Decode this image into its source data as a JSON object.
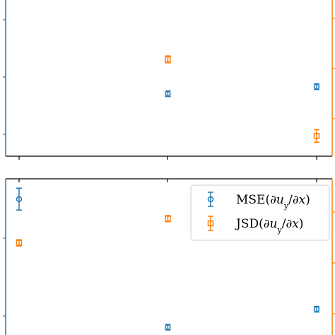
{
  "colors": {
    "mse": "#1f77b4",
    "jsd": "#ff7f0e",
    "axis": "#000000",
    "legend_border": "#cccccc"
  },
  "chart_data": [
    {
      "type": "scatter",
      "panel": "top",
      "x": [
        0,
        1,
        2
      ],
      "xlim": [
        -0.05,
        2.05
      ],
      "grid": false,
      "series": [
        {
          "key": "mse",
          "marker": "circle",
          "axis": "left",
          "ylim": [
            0,
            1
          ],
          "points": [
            {
              "x": 1,
              "y": 0.4,
              "err": 0.018
            },
            {
              "x": 2,
              "y": 0.445,
              "err": 0.018
            }
          ]
        },
        {
          "key": "jsd",
          "marker": "square",
          "axis": "right",
          "ylim": [
            0,
            1
          ],
          "points": [
            {
              "x": 1,
              "y": 0.62,
              "err": 0.022
            },
            {
              "x": 2,
              "y": 0.13,
              "err": 0.04
            }
          ]
        }
      ]
    },
    {
      "type": "scatter",
      "panel": "bottom",
      "x": [
        0,
        1,
        2
      ],
      "xlim": [
        -0.05,
        2.05
      ],
      "grid": false,
      "legend_position": "top-right",
      "legend": [
        {
          "key": "mse",
          "label": "MSE(∂u<sub>y</sub>/∂x)"
        },
        {
          "key": "jsd",
          "label": "JSD(∂u<sub>y</sub>/∂x)"
        }
      ],
      "series": [
        {
          "key": "mse",
          "marker": "circle",
          "axis": "left",
          "ylim": [
            0,
            1
          ],
          "points": [
            {
              "x": 0,
              "y": 0.87,
              "err": 0.07
            },
            {
              "x": 1,
              "y": 0.05,
              "err": 0.018
            },
            {
              "x": 2,
              "y": 0.165,
              "err": 0.018
            }
          ]
        },
        {
          "key": "jsd",
          "marker": "square",
          "axis": "right",
          "ylim": [
            0,
            1
          ],
          "points": [
            {
              "x": 0,
              "y": 0.59,
              "err": 0.02
            },
            {
              "x": 1,
              "y": 0.745,
              "err": 0.02
            }
          ]
        }
      ]
    }
  ]
}
